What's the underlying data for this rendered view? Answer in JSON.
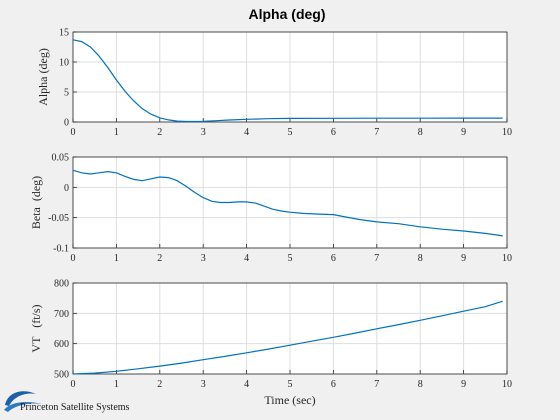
{
  "figure_title": "Alpha (deg)",
  "logo_text": "Princeton Satellite Systems",
  "chart_data": [
    {
      "type": "line",
      "title": "Alpha (deg)",
      "xlabel": "",
      "ylabel": "Alpha (deg)",
      "xlim": [
        0,
        10
      ],
      "ylim": [
        0,
        15
      ],
      "xticks": [
        "0",
        "1",
        "2",
        "3",
        "4",
        "5",
        "6",
        "7",
        "8",
        "9",
        "10"
      ],
      "yticks": [
        "0",
        "5",
        "10",
        "15"
      ],
      "grid": true,
      "color": "#0072bd",
      "series": [
        {
          "x": [
            0,
            0.2,
            0.4,
            0.6,
            0.8,
            1.0,
            1.2,
            1.4,
            1.6,
            1.8,
            2.0,
            2.2,
            2.4,
            2.6,
            2.8,
            3.0,
            3.3,
            3.6,
            4.0,
            4.5,
            5.0,
            6.0,
            7.0,
            8.0,
            9.0,
            9.9
          ],
          "y": [
            13.7,
            13.4,
            12.5,
            11.0,
            9.1,
            7.0,
            5.1,
            3.5,
            2.2,
            1.3,
            0.7,
            0.35,
            0.15,
            0.08,
            0.08,
            0.12,
            0.22,
            0.33,
            0.45,
            0.55,
            0.6,
            0.62,
            0.63,
            0.64,
            0.65,
            0.65
          ]
        }
      ]
    },
    {
      "type": "line",
      "title": "",
      "xlabel": "",
      "ylabel": "Beta  (deg)",
      "xlim": [
        0,
        10
      ],
      "ylim": [
        -0.1,
        0.05
      ],
      "xticks": [
        "0",
        "1",
        "2",
        "3",
        "4",
        "5",
        "6",
        "7",
        "8",
        "9",
        "10"
      ],
      "yticks": [
        "-0.1",
        "-0.05",
        "0",
        "0.05"
      ],
      "ytick_values": [
        -0.1,
        -0.05,
        0,
        0.05
      ],
      "grid": true,
      "color": "#0072bd",
      "series": [
        {
          "x": [
            0,
            0.2,
            0.4,
            0.6,
            0.8,
            1.0,
            1.2,
            1.4,
            1.6,
            1.8,
            2.0,
            2.2,
            2.4,
            2.6,
            2.8,
            3.0,
            3.2,
            3.4,
            3.6,
            3.8,
            4.0,
            4.2,
            4.4,
            4.6,
            4.8,
            5.0,
            5.3,
            5.6,
            6.0,
            6.3,
            6.6,
            7.0,
            7.5,
            8.0,
            8.5,
            9.0,
            9.5,
            9.9
          ],
          "y": [
            0.028,
            0.024,
            0.022,
            0.024,
            0.026,
            0.024,
            0.018,
            0.013,
            0.011,
            0.014,
            0.017,
            0.016,
            0.011,
            0.002,
            -0.008,
            -0.017,
            -0.023,
            -0.025,
            -0.025,
            -0.024,
            -0.024,
            -0.026,
            -0.031,
            -0.036,
            -0.039,
            -0.041,
            -0.043,
            -0.044,
            -0.045,
            -0.049,
            -0.053,
            -0.057,
            -0.06,
            -0.065,
            -0.069,
            -0.072,
            -0.076,
            -0.08
          ]
        }
      ]
    },
    {
      "type": "line",
      "title": "",
      "xlabel": "Time (sec)",
      "ylabel": "VT   (ft/s)",
      "xlim": [
        0,
        10
      ],
      "ylim": [
        500,
        800
      ],
      "xticks": [
        "0",
        "1",
        "2",
        "3",
        "4",
        "5",
        "6",
        "7",
        "8",
        "9",
        "10"
      ],
      "yticks": [
        "500",
        "600",
        "700",
        "800"
      ],
      "grid": true,
      "color": "#0072bd",
      "series": [
        {
          "x": [
            0,
            0.5,
            1.0,
            1.5,
            2.0,
            2.5,
            3.0,
            3.5,
            4.0,
            4.5,
            5.0,
            5.5,
            6.0,
            6.5,
            7.0,
            7.5,
            8.0,
            8.5,
            9.0,
            9.5,
            9.9
          ],
          "y": [
            500,
            503,
            509,
            517,
            526,
            536,
            547,
            558,
            570,
            582,
            595,
            608,
            621,
            635,
            649,
            663,
            677,
            692,
            707,
            722,
            740
          ]
        }
      ]
    }
  ]
}
